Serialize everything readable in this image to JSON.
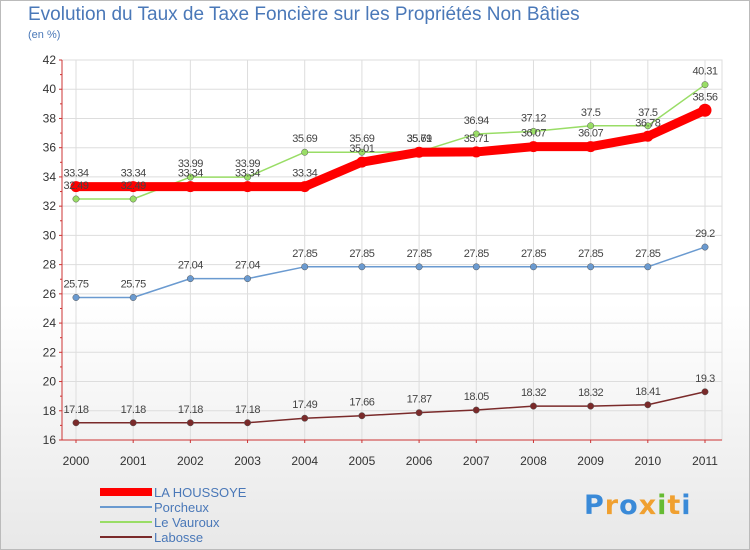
{
  "chart_data": {
    "type": "line",
    "title": "Evolution du Taux de Taxe Foncière sur les Propriétés Non Bâties",
    "ylabel": "(en %)",
    "xlabel": "",
    "ylim": [
      16,
      42
    ],
    "yticks": [
      16,
      18,
      20,
      22,
      24,
      26,
      28,
      30,
      32,
      34,
      36,
      38,
      40,
      42
    ],
    "x": [
      "2000",
      "2001",
      "2002",
      "2003",
      "2004",
      "2005",
      "2006",
      "2007",
      "2008",
      "2009",
      "2010",
      "2011"
    ],
    "grid": true,
    "legend_position": "bottom-left",
    "series": [
      {
        "name": "LA HOUSSOYE",
        "color": "#ff0000",
        "values": [
          33.34,
          33.34,
          33.34,
          33.34,
          33.34,
          35.01,
          35.69,
          35.71,
          36.07,
          36.07,
          36.78,
          38.56
        ],
        "labels": [
          "33.34",
          "33.34",
          "33.34",
          "33.34",
          "33.34",
          "35.01",
          "35.69",
          "35.71",
          "36.07",
          "36.07",
          "36.78",
          "38.56"
        ]
      },
      {
        "name": "Porcheux",
        "color": "#6a9ad0",
        "values": [
          25.75,
          25.75,
          27.04,
          27.04,
          27.85,
          27.85,
          27.85,
          27.85,
          27.85,
          27.85,
          27.85,
          29.2
        ],
        "labels": [
          "25.75",
          "25.75",
          "27.04",
          "27.04",
          "27.85",
          "27.85",
          "27.85",
          "27.85",
          "27.85",
          "27.85",
          "27.85",
          "29.2"
        ]
      },
      {
        "name": "Le Vauroux",
        "color": "#99dd66",
        "values": [
          32.49,
          32.49,
          33.99,
          33.99,
          35.69,
          35.69,
          35.71,
          36.94,
          37.12,
          37.5,
          37.5,
          40.31
        ],
        "labels": [
          "32.49",
          "32.49",
          "33.99",
          "33.99",
          "35.69",
          "35.69",
          "35.71",
          "36.94",
          "37.12",
          "37.5",
          "37.5",
          "40.31"
        ]
      },
      {
        "name": "Labosse",
        "color": "#7a2a2a",
        "values": [
          17.18,
          17.18,
          17.18,
          17.18,
          17.49,
          17.66,
          17.87,
          18.05,
          18.32,
          18.32,
          18.41,
          19.3
        ],
        "labels": [
          "17.18",
          "17.18",
          "17.18",
          "17.18",
          "17.49",
          "17.66",
          "17.87",
          "18.05",
          "18.32",
          "18.32",
          "18.41",
          "19.3"
        ]
      }
    ]
  },
  "logo": {
    "letters": [
      "P",
      "r",
      "o",
      "x",
      "i",
      "t",
      "i"
    ],
    "colors": [
      "#3a8ad8",
      "#f0a030",
      "#3a8ad8",
      "#f0a030",
      "#66bb33",
      "#f0a030",
      "#3a8ad8"
    ]
  }
}
